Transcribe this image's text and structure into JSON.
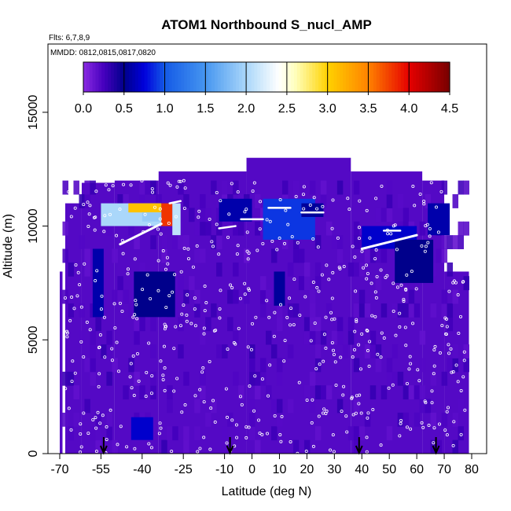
{
  "chart_data": {
    "type": "heatmap",
    "title": "ATOM1 Northbound S_nucl_AMP",
    "subtitle_flights": "Flts: 6,7,8,9",
    "subtitle_dates": "MMDD: 0812,0815,0817,0820",
    "xlabel": "Latitude (deg N)",
    "ylabel": "Altitude (m)",
    "xlim": [
      -70,
      80
    ],
    "ylim": [
      0,
      18000
    ],
    "x_ticks": [
      -70,
      -55,
      -40,
      -25,
      -10,
      0,
      10,
      20,
      30,
      40,
      50,
      60,
      70,
      80
    ],
    "x_tick_labels": [
      "-70",
      "-55",
      "-40",
      "-25",
      "-10",
      "0",
      "10",
      "20",
      "30",
      "40",
      "50",
      "60",
      "70",
      "80"
    ],
    "y_ticks": [
      0,
      5000,
      10000,
      15000
    ],
    "y_tick_labels": [
      "0",
      "5000",
      "10000",
      "15000"
    ],
    "colorbar": {
      "min": 0.0,
      "max": 4.5,
      "ticks": [
        0.0,
        0.5,
        1.0,
        1.5,
        2.0,
        2.5,
        3.0,
        3.5,
        4.0,
        4.5
      ],
      "tick_labels": [
        "0.0",
        "0.5",
        "1.0",
        "1.5",
        "2.0",
        "2.5",
        "3.0",
        "3.5",
        "4.0",
        "4.5"
      ]
    },
    "background_value": 0.2,
    "coverage_envelope": [
      {
        "lat_range": [
          -69,
          -70
        ],
        "alt_max": 8000
      },
      {
        "lat_range": [
          -68,
          -62
        ],
        "alt_max": 11000
      },
      {
        "lat_range": [
          -62,
          -50
        ],
        "alt_max": 11900
      },
      {
        "lat_range": [
          -50,
          -34
        ],
        "alt_max": 12000
      },
      {
        "lat_range": [
          -34,
          -2
        ],
        "alt_max": 12400
      },
      {
        "lat_range": [
          -2,
          36
        ],
        "alt_max": 13000
      },
      {
        "lat_range": [
          36,
          62
        ],
        "alt_max": 12400
      },
      {
        "lat_range": [
          62,
          70
        ],
        "alt_max": 12000
      },
      {
        "lat_range": [
          70,
          79
        ],
        "alt_max": 8000
      }
    ],
    "features": [
      {
        "lat_range": [
          -55,
          -33
        ],
        "alt_range": [
          10000,
          11000
        ],
        "value": 2.0
      },
      {
        "lat_range": [
          -45,
          -33
        ],
        "alt_range": [
          10600,
          11000
        ],
        "value": 3.1
      },
      {
        "lat_range": [
          -33,
          -29
        ],
        "alt_range": [
          10000,
          11000
        ],
        "value": 3.8
      },
      {
        "lat_range": [
          -40,
          -33
        ],
        "alt_range": [
          10200,
          10600
        ],
        "value": 1.9
      },
      {
        "lat_range": [
          -29,
          -26
        ],
        "alt_range": [
          9600,
          11000
        ],
        "value": 2.1
      },
      {
        "lat_range": [
          -43,
          -28
        ],
        "alt_range": [
          6000,
          8000
        ],
        "value": 0.5
      },
      {
        "lat_range": [
          -58,
          -54
        ],
        "alt_range": [
          6000,
          9000
        ],
        "value": 0.6
      },
      {
        "lat_range": [
          -44,
          -36
        ],
        "alt_range": [
          600,
          1600
        ],
        "value": 0.7
      },
      {
        "lat_range": [
          -12,
          0
        ],
        "alt_range": [
          10200,
          11200
        ],
        "value": 0.6
      },
      {
        "lat_range": [
          4,
          23
        ],
        "alt_range": [
          9400,
          11200
        ],
        "value": 0.9
      },
      {
        "lat_range": [
          8,
          12
        ],
        "alt_range": [
          6500,
          8000
        ],
        "value": 0.55
      },
      {
        "lat_range": [
          40,
          60
        ],
        "alt_range": [
          9000,
          10000
        ],
        "value": 0.7
      },
      {
        "lat_range": [
          52,
          66
        ],
        "alt_range": [
          7500,
          9400
        ],
        "value": 0.5
      },
      {
        "lat_range": [
          64,
          72
        ],
        "alt_range": [
          9600,
          11000
        ],
        "value": 0.6
      },
      {
        "lat_range": [
          18,
          26
        ],
        "alt_range": [
          10400,
          11000
        ],
        "value": 0.55
      }
    ],
    "flight_track_labels": [
      {
        "name": "ascent_southern",
        "lat": [
          -48,
          -33
        ],
        "alt": [
          9200,
          10100
        ]
      },
      {
        "name": "level_legs_north",
        "lat": [
          40,
          60
        ],
        "alt": [
          9000,
          9600
        ]
      }
    ],
    "profile_arrows_lat": [
      -54,
      -8,
      39,
      67
    ]
  }
}
